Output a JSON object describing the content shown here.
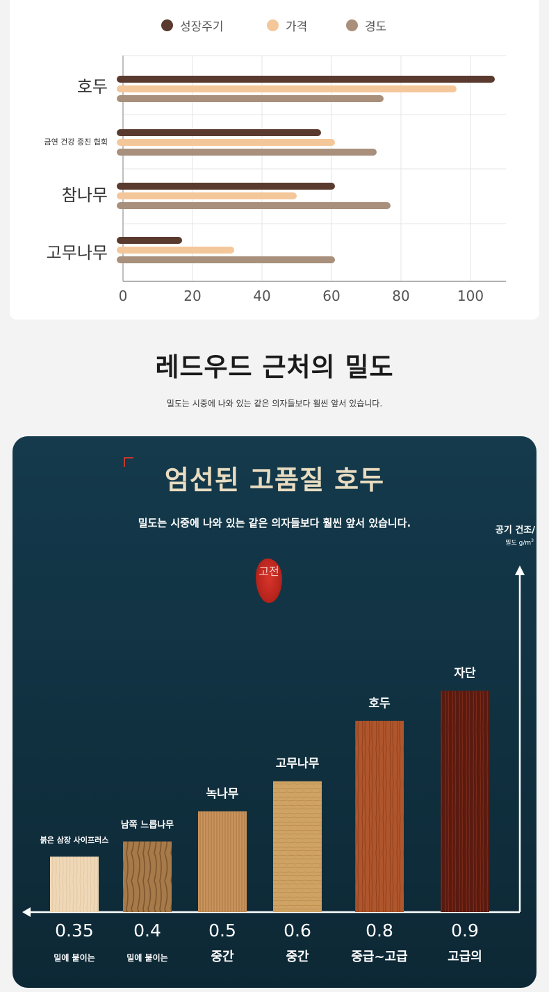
{
  "top_chart": {
    "legend": [
      {
        "label": "성장주기",
        "color": "#5a3a2e"
      },
      {
        "label": "가격",
        "color": "#f4c79b"
      },
      {
        "label": "경도",
        "color": "#a8907c"
      }
    ]
  },
  "section": {
    "title": "레드우드 근처의 밀도",
    "subtitle": "밀도는 시중에 나와 있는 같은 의자들보다 훨씬 앞서 있습니다."
  },
  "density_card": {
    "title": "엄선된 고품질 호두",
    "subtitle": "밀도는 시중에 나와 있는 같은 의자들보다 훨씬 앞서 있습니다.",
    "axis_note": "공기 건조/",
    "axis_unit": "밀도 g/m",
    "axis_unit_sup": "3",
    "seal_text": "고전"
  },
  "chart_data": [
    {
      "type": "bar",
      "orientation": "horizontal",
      "categories": [
        "호두",
        "금연 건강 증진 협회",
        "참나무",
        "고무나무"
      ],
      "series": [
        {
          "name": "성장주기",
          "values": [
            107,
            57,
            61,
            17
          ]
        },
        {
          "name": "가격",
          "values": [
            96,
            61,
            50,
            32
          ]
        },
        {
          "name": "경도",
          "values": [
            75,
            73,
            77,
            61
          ]
        }
      ],
      "xticks": [
        "0",
        "20",
        "40",
        "60",
        "80",
        "100"
      ],
      "xlim": [
        0,
        110
      ],
      "grid": true,
      "legend_position": "top",
      "colors": [
        "#5a3a2e",
        "#f4c79b",
        "#a8907c"
      ]
    },
    {
      "type": "bar",
      "orientation": "vertical",
      "categories": [
        "붉은 삼장 사이프러스",
        "남쪽 느릅나무",
        "녹나무",
        "고무나무",
        "호두",
        "자단"
      ],
      "values": [
        0.35,
        0.4,
        0.5,
        0.6,
        0.8,
        0.9
      ],
      "value_labels": [
        "0.35",
        "0.4",
        "0.5",
        "0.6",
        "0.8",
        "0.9"
      ],
      "grades": [
        "밑에 붙이는",
        "밑에 붙이는",
        "중간",
        "중간",
        "중급~고급",
        "고급의"
      ],
      "bar_colors": [
        "#efd8b8",
        "#a77a4a",
        "#c8935c",
        "#cea364",
        "#b0562c",
        "#5a1a10"
      ]
    }
  ]
}
